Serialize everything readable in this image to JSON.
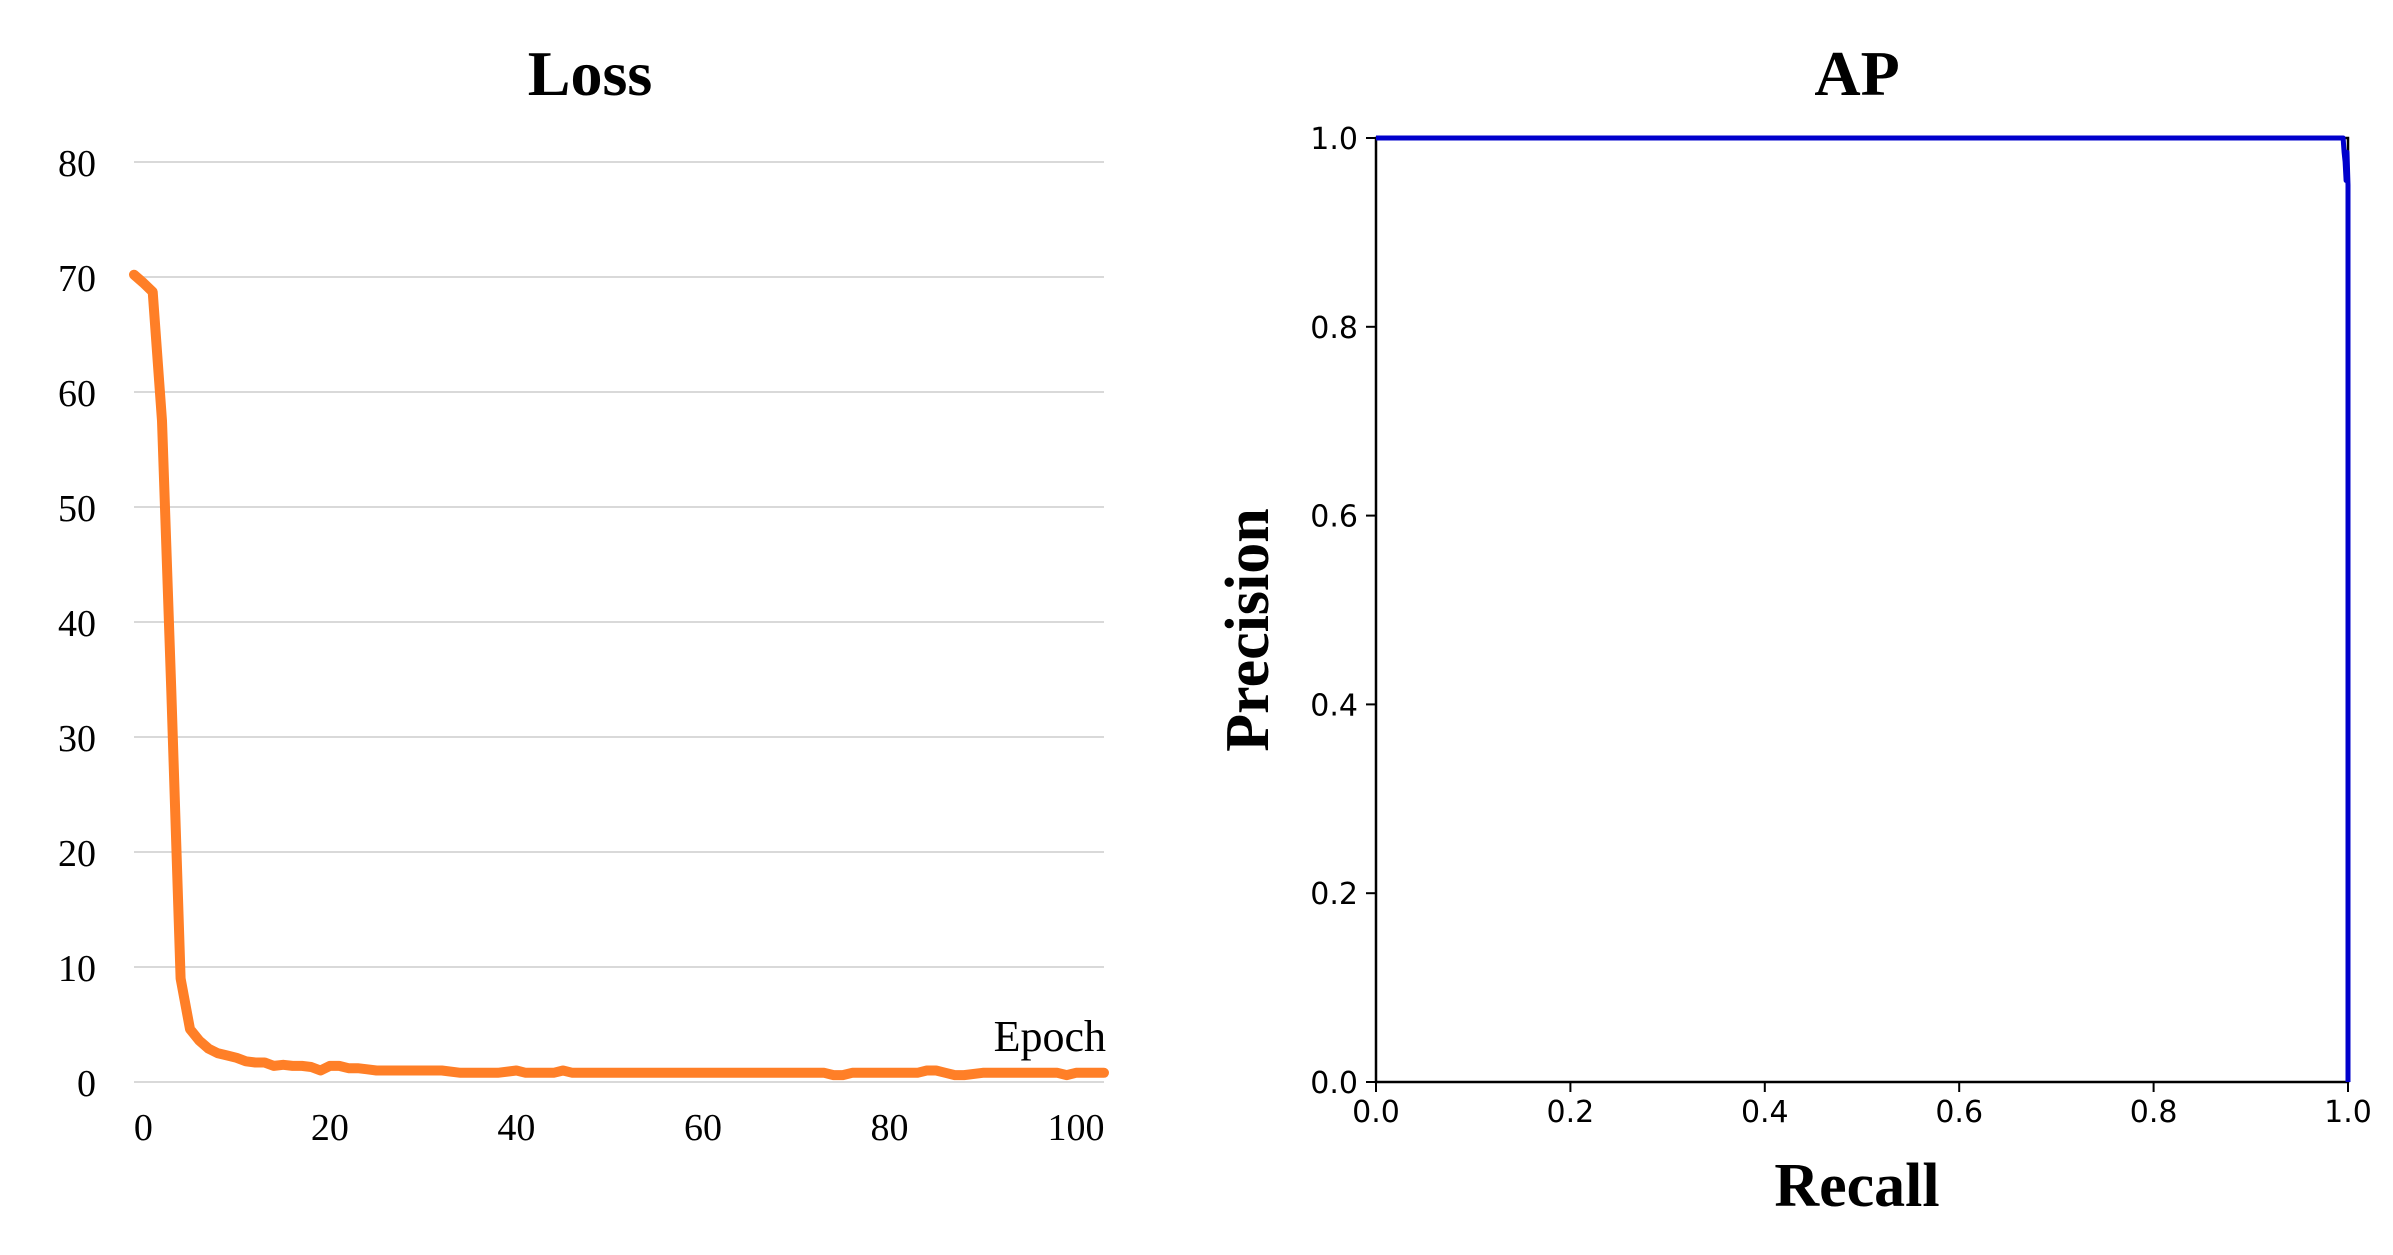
{
  "chart_data": [
    {
      "type": "line",
      "title": "Loss",
      "xlabel": "Epoch",
      "ylabel": "",
      "xlim": [
        -1,
        103
      ],
      "ylim": [
        0,
        80
      ],
      "x_ticks": [
        0,
        20,
        40,
        60,
        80,
        100
      ],
      "y_ticks": [
        0,
        10,
        20,
        30,
        40,
        50,
        60,
        70,
        80
      ],
      "grid": "horizontal",
      "colors": {
        "line": "#ff7f27",
        "grid": "#d9d9d9"
      },
      "series": [
        {
          "x": [
            -1,
            0,
            1,
            2,
            3,
            4,
            5,
            6,
            7,
            8,
            9,
            10,
            11,
            12,
            13,
            14,
            15,
            16,
            17,
            18,
            19,
            20,
            21,
            22,
            23,
            24,
            25,
            26,
            27,
            28,
            30,
            32,
            34,
            35,
            38,
            40,
            41,
            44,
            45,
            46,
            50,
            55,
            60,
            65,
            70,
            73,
            74,
            75,
            76,
            80,
            83,
            84,
            85,
            86,
            87,
            88,
            90,
            95,
            98,
            99,
            100,
            103
          ],
          "y": [
            70.2,
            69.5,
            68.7,
            57.5,
            34,
            9,
            4.6,
            3.6,
            2.9,
            2.5,
            2.3,
            2.1,
            1.8,
            1.7,
            1.7,
            1.4,
            1.5,
            1.4,
            1.4,
            1.3,
            1.0,
            1.4,
            1.4,
            1.2,
            1.2,
            1.1,
            1.0,
            1.0,
            1.0,
            1.0,
            1.0,
            1.0,
            0.8,
            0.8,
            0.8,
            1.0,
            0.8,
            0.8,
            1.0,
            0.8,
            0.8,
            0.8,
            0.8,
            0.8,
            0.8,
            0.8,
            0.6,
            0.6,
            0.8,
            0.8,
            0.8,
            1.0,
            1.0,
            0.8,
            0.6,
            0.6,
            0.8,
            0.8,
            0.8,
            0.6,
            0.8,
            0.8
          ]
        }
      ]
    },
    {
      "type": "line",
      "title": "AP",
      "xlabel": "Recall",
      "ylabel": "Precision",
      "xlim": [
        0.0,
        1.0
      ],
      "ylim": [
        0.0,
        1.0
      ],
      "x_ticks": [
        "0.0",
        "0.2",
        "0.4",
        "0.6",
        "0.8",
        "1.0"
      ],
      "y_ticks": [
        "0.0",
        "0.2",
        "0.4",
        "0.6",
        "0.8",
        "1.0"
      ],
      "grid": "none",
      "colors": {
        "line": "#0000cc"
      },
      "series": [
        {
          "x": [
            0.0,
            0.995,
            0.996,
            0.997,
            0.998,
            0.999,
            1.0,
            1.0
          ],
          "y": [
            1.0,
            1.0,
            0.985,
            0.975,
            0.955,
            0.985,
            0.95,
            0.0
          ]
        }
      ]
    }
  ]
}
